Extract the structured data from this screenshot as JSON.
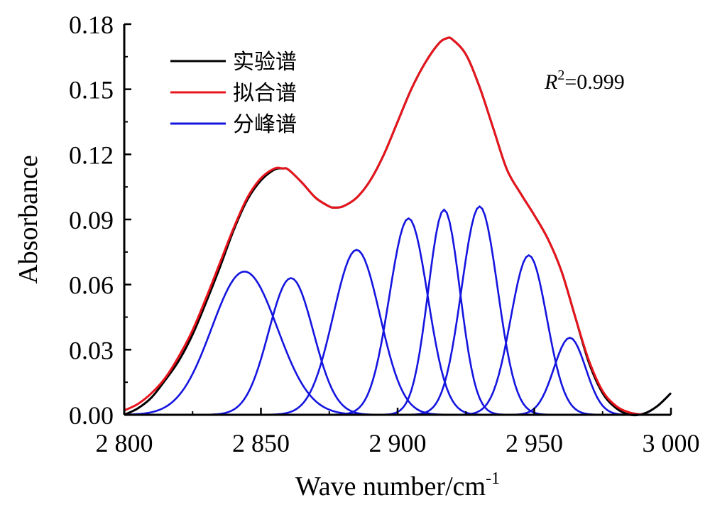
{
  "chart_data": {
    "type": "line",
    "xlabel": "Wave number/cm",
    "xlabel_sup": "-1",
    "ylabel": "Absorbance",
    "xlim": [
      2800,
      3000
    ],
    "ylim": [
      0,
      0.18
    ],
    "x_ticks": [
      2800,
      2850,
      2900,
      2950,
      3000
    ],
    "x_tick_labels": [
      "2 800",
      "2 850",
      "2 900",
      "2 950",
      "3 000"
    ],
    "y_ticks": [
      0,
      0.03,
      0.06,
      0.09,
      0.12,
      0.15,
      0.18
    ],
    "y_tick_labels": [
      "0.00",
      "0.03",
      "0.06",
      "0.09",
      "0.12",
      "0.15",
      "0.18"
    ],
    "grid": false,
    "legend_position": "top-left",
    "annotation": {
      "italic": "R",
      "sup": "2",
      "text": "=0.999"
    },
    "colors": {
      "experimental": "#000000",
      "fit": "#e8141c",
      "peak": "#1515e0"
    },
    "series": [
      {
        "name": "实验谱",
        "color": "#000000",
        "points": [
          [
            2800,
            0.0
          ],
          [
            2805,
            0.003
          ],
          [
            2810,
            0.008
          ],
          [
            2815,
            0.016
          ],
          [
            2820,
            0.025
          ],
          [
            2825,
            0.037
          ],
          [
            2830,
            0.052
          ],
          [
            2835,
            0.068
          ],
          [
            2840,
            0.085
          ],
          [
            2845,
            0.099
          ],
          [
            2850,
            0.108
          ],
          [
            2855,
            0.113
          ],
          [
            2858,
            0.1135
          ],
          [
            2860,
            0.113
          ],
          [
            2865,
            0.107
          ],
          [
            2870,
            0.1
          ],
          [
            2875,
            0.096
          ],
          [
            2877,
            0.0955
          ],
          [
            2880,
            0.096
          ],
          [
            2885,
            0.1
          ],
          [
            2890,
            0.108
          ],
          [
            2895,
            0.12
          ],
          [
            2900,
            0.135
          ],
          [
            2905,
            0.15
          ],
          [
            2910,
            0.162
          ],
          [
            2915,
            0.171
          ],
          [
            2918,
            0.1735
          ],
          [
            2920,
            0.173
          ],
          [
            2925,
            0.166
          ],
          [
            2930,
            0.151
          ],
          [
            2935,
            0.132
          ],
          [
            2940,
            0.113
          ],
          [
            2945,
            0.102
          ],
          [
            2950,
            0.092
          ],
          [
            2955,
            0.081
          ],
          [
            2960,
            0.066
          ],
          [
            2965,
            0.045
          ],
          [
            2970,
            0.024
          ],
          [
            2975,
            0.01
          ],
          [
            2980,
            0.003
          ],
          [
            2985,
            0.0
          ],
          [
            2990,
            0.0005
          ],
          [
            2995,
            0.004
          ],
          [
            3000,
            0.01
          ]
        ]
      },
      {
        "name": "拟合谱",
        "color": "#e8141c",
        "points": [
          [
            2800,
            0.002
          ],
          [
            2805,
            0.005
          ],
          [
            2810,
            0.01
          ],
          [
            2815,
            0.017
          ],
          [
            2820,
            0.027
          ],
          [
            2825,
            0.039
          ],
          [
            2830,
            0.054
          ],
          [
            2835,
            0.07
          ],
          [
            2840,
            0.086
          ],
          [
            2845,
            0.1
          ],
          [
            2850,
            0.109
          ],
          [
            2855,
            0.1135
          ],
          [
            2858,
            0.1135
          ],
          [
            2860,
            0.113
          ],
          [
            2865,
            0.107
          ],
          [
            2870,
            0.1
          ],
          [
            2875,
            0.096
          ],
          [
            2877,
            0.0955
          ],
          [
            2880,
            0.096
          ],
          [
            2885,
            0.1
          ],
          [
            2890,
            0.108
          ],
          [
            2895,
            0.12
          ],
          [
            2900,
            0.135
          ],
          [
            2905,
            0.15
          ],
          [
            2910,
            0.162
          ],
          [
            2915,
            0.171
          ],
          [
            2918,
            0.1735
          ],
          [
            2920,
            0.173
          ],
          [
            2925,
            0.166
          ],
          [
            2930,
            0.151
          ],
          [
            2935,
            0.132
          ],
          [
            2940,
            0.113
          ],
          [
            2945,
            0.102
          ],
          [
            2950,
            0.092
          ],
          [
            2955,
            0.081
          ],
          [
            2960,
            0.066
          ],
          [
            2965,
            0.045
          ],
          [
            2970,
            0.025
          ],
          [
            2975,
            0.011
          ],
          [
            2980,
            0.004
          ],
          [
            2985,
            0.001
          ],
          [
            2990,
            0.0
          ]
        ]
      }
    ],
    "peaks": [
      {
        "name": "分峰谱",
        "center": 2844,
        "amplitude": 0.066,
        "sigma": 12.0
      },
      {
        "center": 2861,
        "amplitude": 0.063,
        "sigma": 8.2
      },
      {
        "center": 2885,
        "amplitude": 0.076,
        "sigma": 8.5
      },
      {
        "center": 2904,
        "amplitude": 0.0905,
        "sigma": 7.0
      },
      {
        "center": 2917,
        "amplitude": 0.0945,
        "sigma": 5.8
      },
      {
        "center": 2930,
        "amplitude": 0.096,
        "sigma": 6.6
      },
      {
        "center": 2948,
        "amplitude": 0.0735,
        "sigma": 6.6
      },
      {
        "center": 2963,
        "amplitude": 0.0355,
        "sigma": 5.8
      }
    ],
    "peak_tail": [
      [
        2982,
        0.0
      ],
      [
        2990,
        0.0005
      ],
      [
        2995,
        0.004
      ],
      [
        3000,
        0.01
      ]
    ]
  }
}
